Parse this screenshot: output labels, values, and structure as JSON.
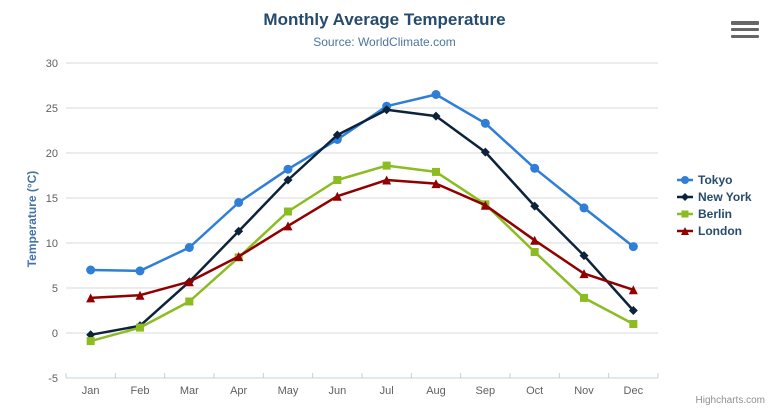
{
  "chart": {
    "title": "Monthly Average Temperature",
    "subtitle": "Source: WorldClimate.com",
    "credit": "Highcharts.com"
  },
  "icons": {
    "context_menu": "hamburger-menu-icon"
  },
  "colors": {
    "title": "#274b6d",
    "subtitle": "#4d759e",
    "y_axis_title": "#4572a7",
    "axis_labels": "#606060",
    "grid_line": "#d8d8d8",
    "axis_line": "#c0d0e0",
    "legend_text": "#274b6d",
    "credit_text": "#909090"
  },
  "chart_data": {
    "type": "line",
    "title": "Monthly Average Temperature",
    "subtitle": "Source: WorldClimate.com",
    "xlabel": "",
    "ylabel": "Temperature (°C)",
    "ylim": [
      -5,
      30
    ],
    "ytick_step": 5,
    "grid": true,
    "legend_position": "right",
    "categories": [
      "Jan",
      "Feb",
      "Mar",
      "Apr",
      "May",
      "Jun",
      "Jul",
      "Aug",
      "Sep",
      "Oct",
      "Nov",
      "Dec"
    ],
    "series": [
      {
        "name": "Tokyo",
        "color": "#2f7ed8",
        "marker": "circle",
        "values": [
          7.0,
          6.9,
          9.5,
          14.5,
          18.2,
          21.5,
          25.2,
          26.5,
          23.3,
          18.3,
          13.9,
          9.6
        ]
      },
      {
        "name": "New York",
        "color": "#0d233a",
        "marker": "diamond",
        "values": [
          -0.2,
          0.8,
          5.7,
          11.3,
          17.0,
          22.0,
          24.8,
          24.1,
          20.1,
          14.1,
          8.6,
          2.5
        ]
      },
      {
        "name": "Berlin",
        "color": "#8bbc21",
        "marker": "square",
        "values": [
          -0.9,
          0.6,
          3.5,
          8.4,
          13.5,
          17.0,
          18.6,
          17.9,
          14.3,
          9.0,
          3.9,
          1.0
        ]
      },
      {
        "name": "London",
        "color": "#910000",
        "marker": "triangle",
        "values": [
          3.9,
          4.2,
          5.7,
          8.5,
          11.9,
          15.2,
          17.0,
          16.6,
          14.2,
          10.3,
          6.6,
          4.8
        ]
      }
    ]
  }
}
